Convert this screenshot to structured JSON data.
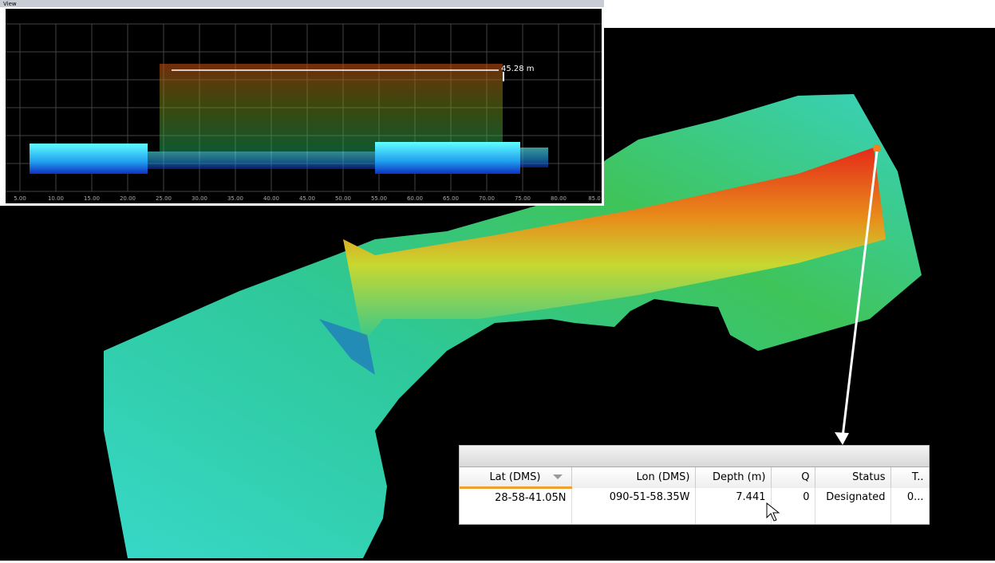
{
  "profile_view": {
    "title": "View",
    "xticks": [
      "5.00",
      "10.00",
      "15.00",
      "20.00",
      "25.00",
      "30.00",
      "35.00",
      "40.00",
      "45.00",
      "50.00",
      "55.00",
      "60.00",
      "65.00",
      "70.00",
      "75.00",
      "80.00",
      "85.0"
    ],
    "measurement": "45.28 m"
  },
  "table": {
    "columns": [
      "Lat (DMS)",
      "Lon (DMS)",
      "Depth (m)",
      "Q",
      "Status",
      "T.."
    ],
    "rows": [
      [
        "28-58-41.05N",
        "090-51-58.35W",
        "7.441",
        "0",
        "Designated",
        "0..."
      ]
    ]
  }
}
